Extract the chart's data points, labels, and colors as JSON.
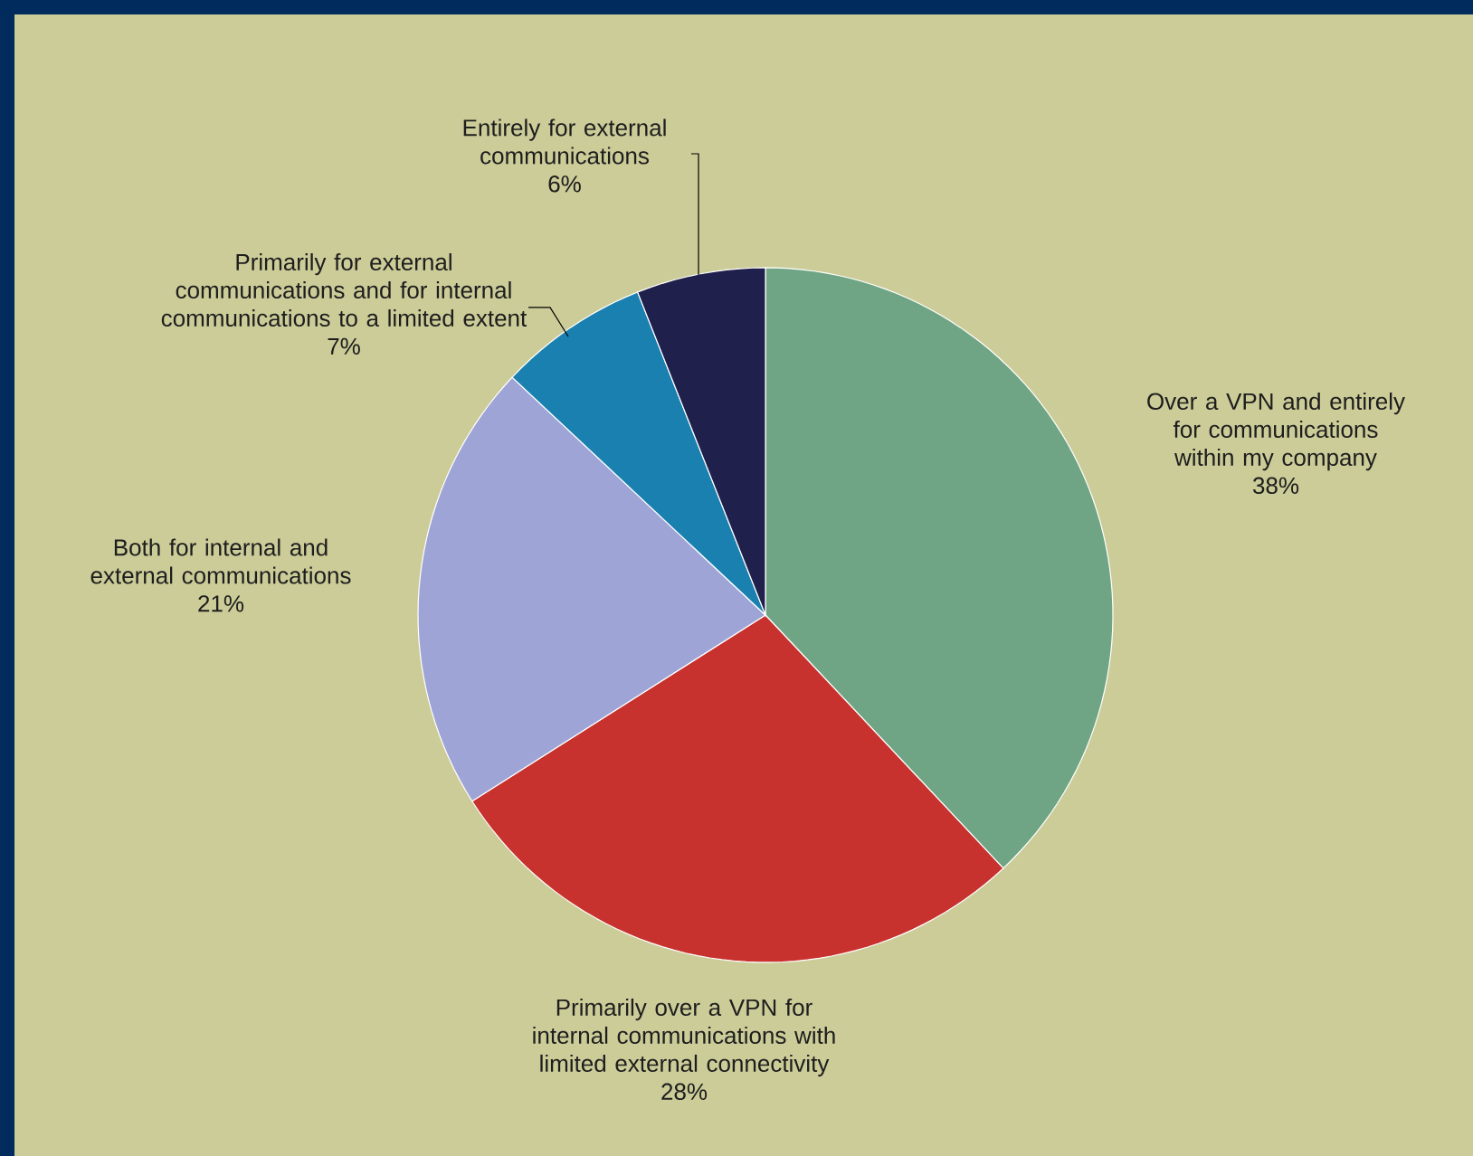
{
  "chart_data": {
    "type": "pie",
    "categories": [
      "Over a VPN and entirely for communications within my company",
      "Primarily over a VPN for internal communications with limited external connectivity",
      "Both for internal and external communications",
      "Primarily for external communications and for internal communications to a limited extent",
      "Entirely for external communications"
    ],
    "values": [
      38,
      28,
      21,
      7,
      6
    ],
    "colors": [
      "#6fa584",
      "#c8322e",
      "#9ea5d6",
      "#1a80b0",
      "#20204c"
    ],
    "value_labels": [
      "38%",
      "28%",
      "21%",
      "7%",
      "6%"
    ]
  }
}
